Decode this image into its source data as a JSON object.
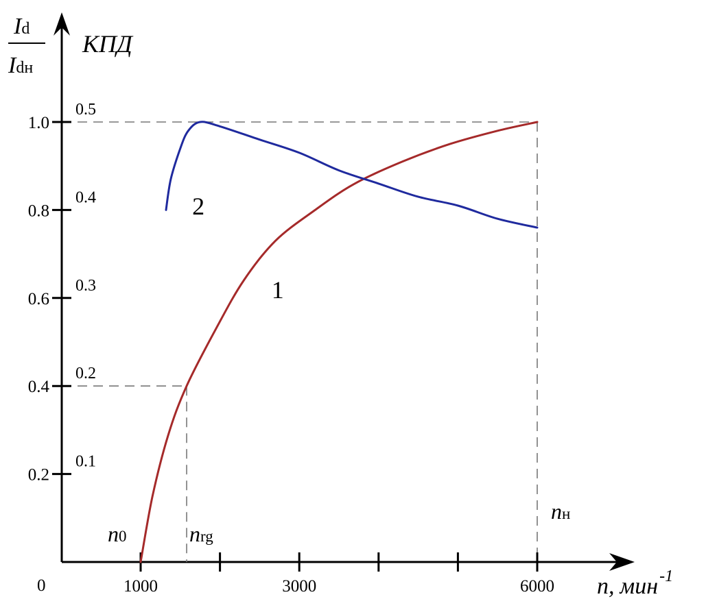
{
  "chart_data": {
    "type": "line",
    "y_axis_left": {
      "label_numerator": "I",
      "label_numerator_sub": "d",
      "label_denominator": "I",
      "label_denominator_sub": "dн",
      "ticks": [
        "0.2",
        "0.4",
        "0.6",
        "0.8",
        "1.0"
      ],
      "tick_values": [
        0.2,
        0.4,
        0.6,
        0.8,
        1.0
      ],
      "range": [
        0,
        1.0
      ]
    },
    "y_axis_right": {
      "label": "КПД",
      "ticks": [
        "0.1",
        "0.2",
        "0.3",
        "0.4",
        "0.5"
      ],
      "tick_values": [
        0.1,
        0.2,
        0.3,
        0.4,
        0.5
      ],
      "range": [
        0,
        0.5
      ]
    },
    "x_axis": {
      "label_var": "n,",
      "label_unit": "мин",
      "label_exp": "-1",
      "origin_label": "0",
      "tick_labels": [
        "1000",
        "3000",
        "6000"
      ],
      "tick_label_values": [
        1000,
        3000,
        6000
      ],
      "tick_values": [
        1000,
        2000,
        3000,
        4000,
        5000,
        6000
      ],
      "range": [
        0,
        6000
      ]
    },
    "markers": [
      {
        "var": "n",
        "sub": "0",
        "x": 1000
      },
      {
        "var": "n",
        "sub": "rg",
        "x": 1580
      },
      {
        "var": "n",
        "sub": "н",
        "x": 6000
      }
    ],
    "reference_lines": [
      {
        "x": 1580,
        "y": 0.4
      },
      {
        "x": 6000,
        "y": 1.0
      }
    ],
    "series": [
      {
        "name": "1",
        "color": "#a52a2a",
        "axis": "left",
        "points": [
          [
            1000,
            0.0
          ],
          [
            1150,
            0.15
          ],
          [
            1350,
            0.29
          ],
          [
            1580,
            0.4
          ],
          [
            1950,
            0.53
          ],
          [
            2300,
            0.64
          ],
          [
            2700,
            0.73
          ],
          [
            3200,
            0.8
          ],
          [
            3700,
            0.86
          ],
          [
            4300,
            0.91
          ],
          [
            4900,
            0.95
          ],
          [
            5500,
            0.98
          ],
          [
            6000,
            1.0
          ]
        ],
        "label_at": [
          2650,
          0.6
        ]
      },
      {
        "name": "2",
        "color": "#1f2a9e",
        "axis": "left",
        "points": [
          [
            1320,
            0.8
          ],
          [
            1380,
            0.87
          ],
          [
            1500,
            0.94
          ],
          [
            1600,
            0.98
          ],
          [
            1750,
            1.0
          ],
          [
            2000,
            0.99
          ],
          [
            2500,
            0.96
          ],
          [
            3000,
            0.93
          ],
          [
            3500,
            0.89
          ],
          [
            4000,
            0.86
          ],
          [
            4500,
            0.83
          ],
          [
            5000,
            0.81
          ],
          [
            5500,
            0.78
          ],
          [
            6000,
            0.76
          ]
        ],
        "label_at": [
          1650,
          0.79
        ]
      }
    ]
  }
}
